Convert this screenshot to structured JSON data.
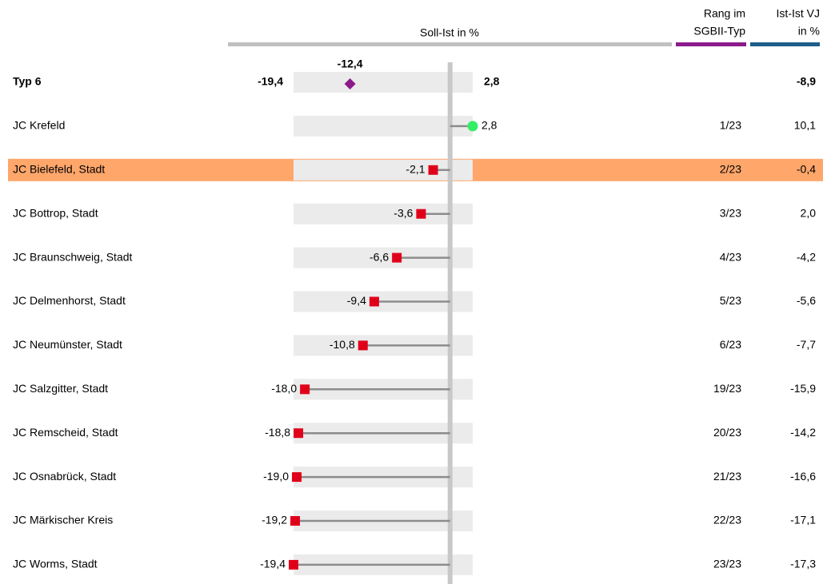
{
  "chart_data": {
    "type": "dot",
    "header": {
      "value_title": "Soll-Ist in %",
      "rank_title_1": "Rang im",
      "rank_title_2": "SGBII-Typ",
      "change_title_1": "Ist-Ist VJ",
      "change_title_2": "in %"
    },
    "header_colors": {
      "value": "#c0c0c0",
      "rank": "#8b1a8b",
      "change": "#1f5f8b"
    },
    "xlim": [
      -19.4,
      2.8
    ],
    "summary": {
      "label": "Typ 6",
      "min": -19.4,
      "min_label": "-19,4",
      "max": 2.8,
      "max_label": "2,8",
      "mean": -12.4,
      "mean_label": "-12,4",
      "mean_color": "#8b1a8b",
      "change": -8.9,
      "change_label": "-8,9"
    },
    "categories": [
      "JC Krefeld",
      "JC Bielefeld, Stadt",
      "JC Bottrop, Stadt",
      "JC Braunschweig, Stadt",
      "JC Delmenhorst, Stadt",
      "JC Neumünster, Stadt",
      "JC Salzgitter, Stadt",
      "JC Remscheid, Stadt",
      "JC Osnabrück, Stadt",
      "JC Märkischer Kreis",
      "JC Worms, Stadt"
    ],
    "values": [
      2.8,
      -2.1,
      -3.6,
      -6.6,
      -9.4,
      -10.8,
      -18.0,
      -18.8,
      -19.0,
      -19.2,
      -19.4
    ],
    "value_labels": [
      "2,8",
      "-2,1",
      "-3,6",
      "-6,6",
      "-9,4",
      "-10,8",
      "-18,0",
      "-18,8",
      "-19,0",
      "-19,2",
      "-19,4"
    ],
    "rank": [
      "1/23",
      "2/23",
      "3/23",
      "4/23",
      "5/23",
      "6/23",
      "19/23",
      "20/23",
      "21/23",
      "22/23",
      "23/23"
    ],
    "change": [
      10.1,
      -0.4,
      2.0,
      -4.2,
      -5.6,
      -7.7,
      -15.9,
      -14.2,
      -16.6,
      -17.1,
      -17.3
    ],
    "change_labels": [
      "10,1",
      "-0,4",
      "2,0",
      "-4,2",
      "-5,6",
      "-7,7",
      "-15,9",
      "-14,2",
      "-16,6",
      "-17,1",
      "-17,3"
    ],
    "positive_color": "#33ee66",
    "negative_color": "#e0001a",
    "highlight_index": 1,
    "highlight_color": "#ffa66b"
  }
}
